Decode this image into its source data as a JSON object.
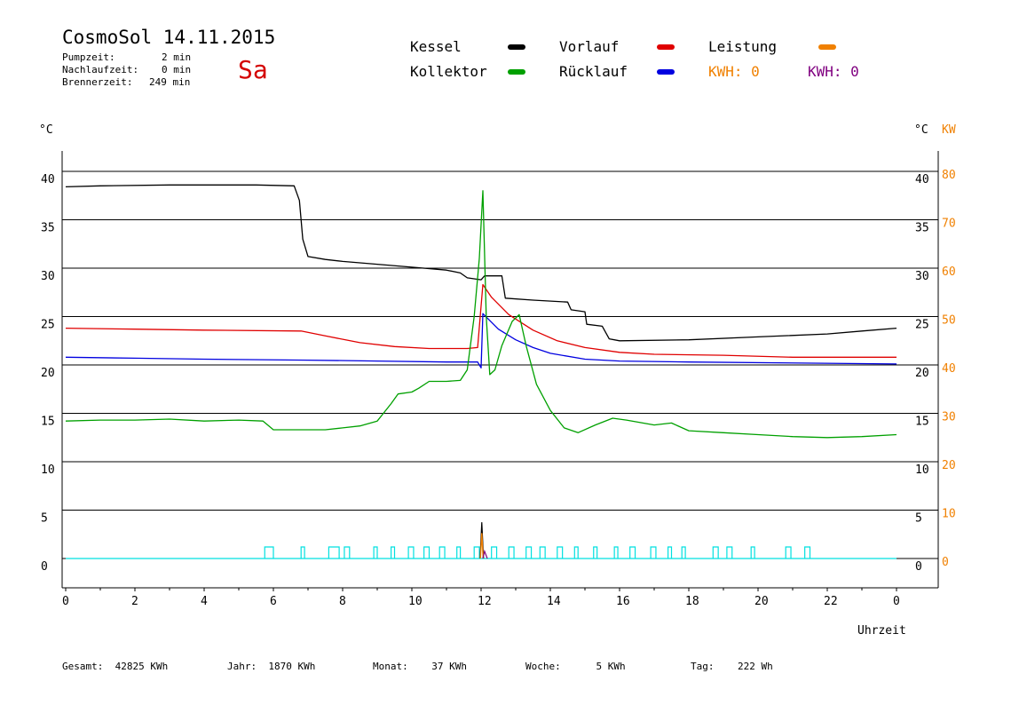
{
  "header": {
    "title": "CosmoSol 14.11.2015",
    "pumpzeit_label": "Pumpzeit:",
    "pumpzeit_value": "2 min",
    "nachlaufzeit_label": "Nachlaufzeit:",
    "nachlaufzeit_value": "0 min",
    "brennerzeit_label": "Brennerzeit:",
    "brennerzeit_value": "249 min",
    "day": "Sa"
  },
  "legend": {
    "kessel": "Kessel",
    "vorlauf": "Vorlauf",
    "leistung": "Leistung",
    "kollektor": "Kollektor",
    "ruecklauf": "Rücklauf",
    "kwh1": "KWH: 0",
    "kwh2": "KWH: 0",
    "colors": {
      "kessel": "#000000",
      "vorlauf": "#e00000",
      "leistung": "#f08000",
      "kollektor": "#00a000",
      "ruecklauf": "#0000e0",
      "kwh2": "#800080",
      "pump": "#00e0e0"
    }
  },
  "units": {
    "left": "°C",
    "right_c": "°C",
    "right_kw": "KW"
  },
  "footer": {
    "gesamt": "Gesamt:  42825 KWh",
    "jahr": "Jahr:  1870 KWh",
    "monat": "Monat:    37 KWh",
    "woche": "Woche:      5 KWh",
    "tag": "Tag:    222 Wh"
  },
  "chart_data": {
    "type": "line",
    "xlabel": "Uhrzeit",
    "x_ticks": [
      "0",
      "2",
      "4",
      "6",
      "8",
      "10",
      "12",
      "14",
      "16",
      "18",
      "20",
      "22",
      "0"
    ],
    "xlim": [
      0,
      24
    ],
    "ylim": [
      0,
      45
    ],
    "y_ticks_left": [
      "0",
      "5",
      "10",
      "15",
      "20",
      "25",
      "30",
      "35",
      "40"
    ],
    "y_ticks_right_c": [
      "0",
      "5",
      "10",
      "15",
      "20",
      "25",
      "30",
      "35",
      "40"
    ],
    "y_ticks_right_kw": [
      "0",
      "10",
      "20",
      "30",
      "40",
      "50",
      "60",
      "70",
      "80"
    ],
    "grid": "horizontal",
    "series": [
      {
        "name": "Kessel",
        "color": "#000000",
        "points": [
          [
            0,
            38.4
          ],
          [
            1,
            38.5
          ],
          [
            3,
            38.6
          ],
          [
            5.5,
            38.6
          ],
          [
            6.6,
            38.5
          ],
          [
            6.75,
            37
          ],
          [
            6.85,
            33
          ],
          [
            7,
            31.2
          ],
          [
            7.5,
            30.9
          ],
          [
            8,
            30.7
          ],
          [
            9,
            30.4
          ],
          [
            10,
            30.1
          ],
          [
            11,
            29.8
          ],
          [
            11.4,
            29.5
          ],
          [
            11.6,
            29
          ],
          [
            12,
            28.8
          ],
          [
            12.1,
            29.2
          ],
          [
            12.6,
            29.2
          ],
          [
            12.7,
            26.9
          ],
          [
            13.5,
            26.7
          ],
          [
            14.5,
            26.5
          ],
          [
            14.6,
            25.7
          ],
          [
            15,
            25.5
          ],
          [
            15.05,
            24.2
          ],
          [
            15.5,
            24
          ],
          [
            15.7,
            22.7
          ],
          [
            16,
            22.5
          ],
          [
            18,
            22.6
          ],
          [
            20,
            22.9
          ],
          [
            22,
            23.2
          ],
          [
            23,
            23.5
          ],
          [
            24,
            23.8
          ]
        ]
      },
      {
        "name": "Vorlauf",
        "color": "#e00000",
        "points": [
          [
            0,
            23.8
          ],
          [
            2,
            23.7
          ],
          [
            4,
            23.6
          ],
          [
            6.8,
            23.5
          ],
          [
            7.5,
            23
          ],
          [
            8.5,
            22.3
          ],
          [
            9.5,
            21.9
          ],
          [
            10.5,
            21.7
          ],
          [
            11.6,
            21.7
          ],
          [
            11.9,
            21.8
          ],
          [
            12.05,
            28.3
          ],
          [
            12.3,
            27
          ],
          [
            12.8,
            25.2
          ],
          [
            13.5,
            23.6
          ],
          [
            14.2,
            22.5
          ],
          [
            15,
            21.8
          ],
          [
            16,
            21.3
          ],
          [
            17,
            21.1
          ],
          [
            19,
            21
          ],
          [
            21,
            20.8
          ],
          [
            24,
            20.8
          ]
        ]
      },
      {
        "name": "Rücklauf",
        "color": "#0000e0",
        "points": [
          [
            0,
            20.8
          ],
          [
            2,
            20.7
          ],
          [
            4,
            20.6
          ],
          [
            7,
            20.5
          ],
          [
            9,
            20.4
          ],
          [
            11,
            20.3
          ],
          [
            11.9,
            20.3
          ],
          [
            12,
            19.7
          ],
          [
            12.05,
            25.3
          ],
          [
            12.5,
            23.7
          ],
          [
            13,
            22.6
          ],
          [
            13.5,
            21.8
          ],
          [
            14,
            21.2
          ],
          [
            15,
            20.6
          ],
          [
            16,
            20.4
          ],
          [
            18,
            20.3
          ],
          [
            24,
            20.1
          ]
        ]
      },
      {
        "name": "Kollektor",
        "color": "#00a000",
        "points": [
          [
            0,
            14.2
          ],
          [
            1,
            14.3
          ],
          [
            2,
            14.3
          ],
          [
            3,
            14.4
          ],
          [
            4,
            14.2
          ],
          [
            5,
            14.3
          ],
          [
            5.7,
            14.2
          ],
          [
            6,
            13.3
          ],
          [
            7,
            13.3
          ],
          [
            7.5,
            13.3
          ],
          [
            8,
            13.5
          ],
          [
            8.5,
            13.7
          ],
          [
            9,
            14.2
          ],
          [
            9.4,
            16
          ],
          [
            9.6,
            17
          ],
          [
            10,
            17.2
          ],
          [
            10.2,
            17.6
          ],
          [
            10.5,
            18.3
          ],
          [
            11,
            18.3
          ],
          [
            11.4,
            18.4
          ],
          [
            11.6,
            19.5
          ],
          [
            11.8,
            25
          ],
          [
            11.95,
            31
          ],
          [
            12.05,
            38
          ],
          [
            12.15,
            25
          ],
          [
            12.25,
            19
          ],
          [
            12.4,
            19.5
          ],
          [
            12.6,
            22
          ],
          [
            12.9,
            24.5
          ],
          [
            13.1,
            25.2
          ],
          [
            13.3,
            22
          ],
          [
            13.6,
            18
          ],
          [
            14,
            15.3
          ],
          [
            14.4,
            13.5
          ],
          [
            14.8,
            13
          ],
          [
            15.3,
            13.8
          ],
          [
            15.8,
            14.5
          ],
          [
            16.2,
            14.3
          ],
          [
            17,
            13.8
          ],
          [
            17.5,
            14
          ],
          [
            18,
            13.2
          ],
          [
            19,
            13
          ],
          [
            20,
            12.8
          ],
          [
            21,
            12.6
          ],
          [
            22,
            12.5
          ],
          [
            23,
            12.6
          ],
          [
            24,
            12.8
          ]
        ]
      }
    ],
    "leistung_spike": {
      "x": 12.02,
      "y_kw": 7.5
    },
    "kwh_spike": {
      "x": 12.1,
      "y_kw": 1.5
    },
    "pump_pulses": [
      [
        5.75,
        6.0
      ],
      [
        6.8,
        6.9
      ],
      [
        7.6,
        7.9
      ],
      [
        8.05,
        8.2
      ],
      [
        8.9,
        9.0
      ],
      [
        9.4,
        9.5
      ],
      [
        9.9,
        10.05
      ],
      [
        10.35,
        10.5
      ],
      [
        10.8,
        10.95
      ],
      [
        11.3,
        11.4
      ],
      [
        11.8,
        11.95
      ],
      [
        12.3,
        12.45
      ],
      [
        12.8,
        12.95
      ],
      [
        13.3,
        13.45
      ],
      [
        13.7,
        13.85
      ],
      [
        14.2,
        14.35
      ],
      [
        14.7,
        14.8
      ],
      [
        15.25,
        15.35
      ],
      [
        15.85,
        15.95
      ],
      [
        16.3,
        16.45
      ],
      [
        16.9,
        17.05
      ],
      [
        17.4,
        17.5
      ],
      [
        17.8,
        17.9
      ],
      [
        18.7,
        18.85
      ],
      [
        19.1,
        19.25
      ],
      [
        19.8,
        19.9
      ],
      [
        20.8,
        20.95
      ],
      [
        21.35,
        21.5
      ]
    ]
  }
}
